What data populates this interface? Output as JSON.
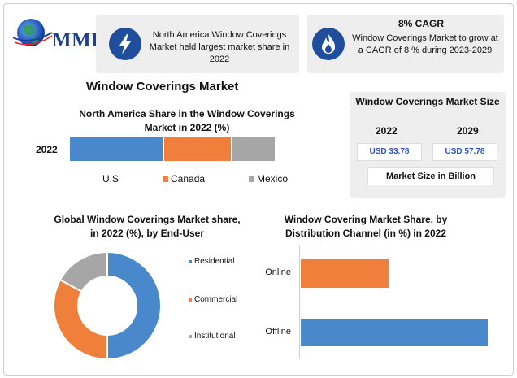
{
  "logo": {
    "text": "MMR"
  },
  "cards": [
    {
      "icon": "lightning-icon",
      "text": "North America Window Coverings Market held largest market share in 2022"
    },
    {
      "icon": "flame-icon",
      "title": "8% CAGR",
      "text": "Window Coverings Market to grow at a CAGR of 8 % during 2023-2029"
    }
  ],
  "main_title": "Window Coverings Market",
  "market_size": {
    "title": "Window Coverings Market Size",
    "years": [
      "2022",
      "2029"
    ],
    "values": [
      "USD 33.78",
      "USD 57.78"
    ],
    "note": "Market Size in Billion"
  },
  "colors": {
    "blue": "#4a88cc",
    "orange": "#ef7f3b",
    "gray": "#a6a6a6",
    "badge": "#1f4e9c"
  },
  "chart_data": [
    {
      "type": "bar",
      "orientation": "horizontal-stacked",
      "title": "North America Share in the Window Coverings Market in 2022 (%)",
      "categories": [
        "2022"
      ],
      "series": [
        {
          "name": "U.S",
          "values": [
            46
          ]
        },
        {
          "name": "Canada",
          "values": [
            33
          ]
        },
        {
          "name": "Mexico",
          "values": [
            21
          ]
        }
      ],
      "legend": "bottom"
    },
    {
      "type": "pie",
      "variant": "donut",
      "title": "Global Window Coverings Market share, in 2022 (%), by End-User",
      "labels": [
        "Residential",
        "Commercial",
        "Institutional"
      ],
      "values": [
        50,
        33,
        17
      ],
      "legend": "right"
    },
    {
      "type": "bar",
      "orientation": "horizontal",
      "title": "Window Covering Market Share, by Distribution Channel (in %) in 2022",
      "categories": [
        "Online",
        "Offline"
      ],
      "values": [
        32,
        68
      ]
    }
  ]
}
